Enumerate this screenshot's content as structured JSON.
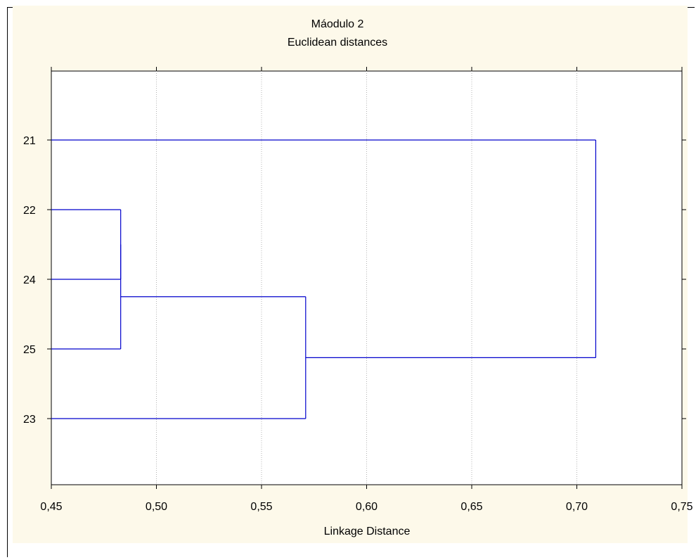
{
  "chart_data": {
    "type": "dendrogram",
    "title": "Máodulo 2",
    "subtitle": "Euclidean distances",
    "xlabel": "Linkage Distance",
    "ylabel": "",
    "xlim": [
      0.45,
      0.75
    ],
    "x_ticks": [
      "0,45",
      "0,50",
      "0,55",
      "0,60",
      "0,65",
      "0,70",
      "0,75"
    ],
    "x_tick_values": [
      0.45,
      0.5,
      0.55,
      0.6,
      0.65,
      0.7,
      0.75
    ],
    "leaves": [
      "21",
      "22",
      "24",
      "25",
      "23"
    ],
    "merges": [
      {
        "items": [
          "22",
          "24"
        ],
        "distance": 0.483
      },
      {
        "items": [
          "22+24",
          "25"
        ],
        "distance": 0.483
      },
      {
        "items": [
          "22+24+25",
          "23"
        ],
        "distance": 0.571
      },
      {
        "items": [
          "22+24+25+23",
          "21"
        ],
        "distance": 0.709
      }
    ],
    "grid": "vertical dotted",
    "line_color": "#0000cc"
  }
}
